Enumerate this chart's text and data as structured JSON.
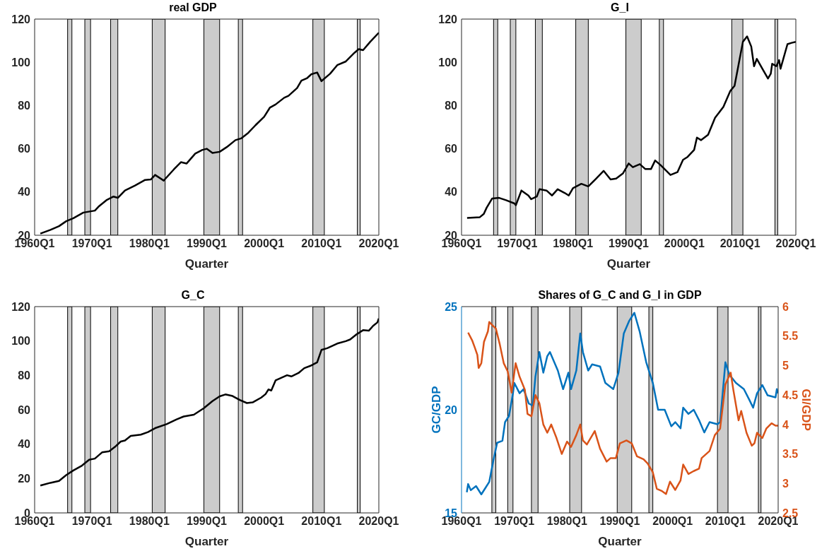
{
  "chart_data": [
    {
      "type": "line",
      "title": "real GDP",
      "xlabel": "Quarter",
      "color": "#000000",
      "xlim": [
        "1960-01",
        "2020-01"
      ],
      "xticks": [
        {
          "value": "1960-01",
          "label": "1960Q1"
        },
        {
          "value": "1970-01",
          "label": "1970Q1"
        },
        {
          "value": "1980-01",
          "label": "1980Q1"
        },
        {
          "value": "1990-01",
          "label": "1990Q1"
        },
        {
          "value": "2000-01",
          "label": "2000Q1"
        },
        {
          "value": "2010-01",
          "label": "2010Q1"
        },
        {
          "value": "2020-01",
          "label": "2020Q1"
        }
      ],
      "ylim": [
        20,
        120
      ],
      "yticks": [
        20,
        40,
        60,
        80,
        100,
        120
      ],
      "bands": [
        {
          "axis": "x",
          "from": "1965-10",
          "to": "1966-07",
          "color": "#cccccc"
        },
        {
          "axis": "x",
          "from": "1968-10",
          "to": "1969-10",
          "color": "#cccccc"
        },
        {
          "axis": "x",
          "from": "1973-04",
          "to": "1974-07",
          "color": "#cccccc"
        },
        {
          "axis": "x",
          "from": "1980-07",
          "to": "1982-10",
          "color": "#cccccc"
        },
        {
          "axis": "x",
          "from": "1989-07",
          "to": "1992-04",
          "color": "#cccccc"
        },
        {
          "axis": "x",
          "from": "1995-07",
          "to": "1996-04",
          "color": "#cccccc"
        },
        {
          "axis": "x",
          "from": "2008-07",
          "to": "2010-07",
          "color": "#cccccc"
        },
        {
          "axis": "x",
          "from": "2016-04",
          "to": "2016-10",
          "color": "#cccccc"
        }
      ],
      "x": [
        "1961-01",
        "1962-10",
        "1964-04",
        "1965-07",
        "1966-10",
        "1968-07",
        "1970-07",
        "1971-04",
        "1972-07",
        "1973-10",
        "1974-07",
        "1975-10",
        "1977-07",
        "1979-04",
        "1980-04",
        "1981-01",
        "1982-07",
        "1984-04",
        "1985-07",
        "1986-07",
        "1988-01",
        "1989-04",
        "1990-01",
        "1991-01",
        "1992-04",
        "1993-07",
        "1995-01",
        "1996-01",
        "1997-04",
        "1998-07",
        "2000-01",
        "2001-01",
        "2002-01",
        "2003-07",
        "2004-04",
        "2005-10",
        "2006-07",
        "2007-07",
        "2008-04",
        "2009-04",
        "2010-01",
        "2011-07",
        "2012-10",
        "2014-04",
        "2015-10",
        "2016-07",
        "2017-04",
        "2018-07",
        "2020-01"
      ],
      "values": [
        20.8,
        22.5,
        24.2,
        26.5,
        27.9,
        30.5,
        31.4,
        33.5,
        36.2,
        37.9,
        37.3,
        40.7,
        43.0,
        45.6,
        45.8,
        47.9,
        45.3,
        50.4,
        53.8,
        53.2,
        57.8,
        59.5,
        60.0,
        58.1,
        58.6,
        60.8,
        64.0,
        64.8,
        67.4,
        70.9,
        74.8,
        79.0,
        80.5,
        83.6,
        84.5,
        88.1,
        91.5,
        92.7,
        94.5,
        95.3,
        91.3,
        94.7,
        98.7,
        100.4,
        104.4,
        106.1,
        105.6,
        109.5,
        113.7
      ]
    },
    {
      "type": "line",
      "title": "G_I",
      "xlabel": "Quarter",
      "color": "#000000",
      "xlim": [
        "1960-01",
        "2020-01"
      ],
      "xticks": [
        {
          "value": "1960-01",
          "label": "1960Q1"
        },
        {
          "value": "1970-01",
          "label": "1970Q1"
        },
        {
          "value": "1980-01",
          "label": "1980Q1"
        },
        {
          "value": "1990-01",
          "label": "1990Q1"
        },
        {
          "value": "2000-01",
          "label": "2000Q1"
        },
        {
          "value": "2010-01",
          "label": "2010Q1"
        },
        {
          "value": "2020-01",
          "label": "2020Q1"
        }
      ],
      "ylim": [
        20,
        120
      ],
      "yticks": [
        20,
        40,
        60,
        80,
        100,
        120
      ],
      "bands": [
        {
          "axis": "x",
          "from": "1965-10",
          "to": "1966-07",
          "color": "#cccccc"
        },
        {
          "axis": "x",
          "from": "1968-10",
          "to": "1969-10",
          "color": "#cccccc"
        },
        {
          "axis": "x",
          "from": "1973-04",
          "to": "1974-07",
          "color": "#cccccc"
        },
        {
          "axis": "x",
          "from": "1980-07",
          "to": "1982-10",
          "color": "#cccccc"
        },
        {
          "axis": "x",
          "from": "1989-07",
          "to": "1992-04",
          "color": "#cccccc"
        },
        {
          "axis": "x",
          "from": "1995-07",
          "to": "1996-04",
          "color": "#cccccc"
        },
        {
          "axis": "x",
          "from": "2008-07",
          "to": "2010-07",
          "color": "#cccccc"
        },
        {
          "axis": "x",
          "from": "2016-04",
          "to": "2016-10",
          "color": "#cccccc"
        }
      ],
      "x": [
        "1961-01",
        "1963-04",
        "1964-01",
        "1964-07",
        "1965-07",
        "1966-10",
        "1968-01",
        "1969-07",
        "1969-10",
        "1970-10",
        "1972-01",
        "1972-07",
        "1973-07",
        "1974-01",
        "1975-04",
        "1976-04",
        "1977-04",
        "1978-07",
        "1979-04",
        "1980-01",
        "1981-07",
        "1982-10",
        "1984-01",
        "1985-07",
        "1986-10",
        "1987-10",
        "1989-01",
        "1990-01",
        "1990-10",
        "1992-01",
        "1993-01",
        "1994-01",
        "1994-10",
        "1995-10",
        "1997-07",
        "1998-10",
        "1999-10",
        "2000-07",
        "2001-10",
        "2002-04",
        "2003-01",
        "2004-04",
        "2005-07",
        "2007-01",
        "2008-04",
        "2009-01",
        "2009-07",
        "2010-07",
        "2011-04",
        "2012-01",
        "2012-07",
        "2013-01",
        "2014-01",
        "2015-01",
        "2015-07",
        "2015-10",
        "2016-07",
        "2017-01",
        "2017-04",
        "2018-07",
        "2019-04",
        "2020-01"
      ],
      "values": [
        28.0,
        28.3,
        29.9,
        32.7,
        37.0,
        37.3,
        36.2,
        34.7,
        33.9,
        40.7,
        38.4,
        36.7,
        37.9,
        41.3,
        40.7,
        38.4,
        41.3,
        39.6,
        38.4,
        41.8,
        43.8,
        42.6,
        45.8,
        49.8,
        45.8,
        46.2,
        48.7,
        53.2,
        51.5,
        52.9,
        50.6,
        50.6,
        54.6,
        52.4,
        47.9,
        49.2,
        54.9,
        56.1,
        59.5,
        65.2,
        64.0,
        66.5,
        74.3,
        79.4,
        86.8,
        89.1,
        95.9,
        109.5,
        112.0,
        107.3,
        98.2,
        101.6,
        97.0,
        92.5,
        94.7,
        99.3,
        98.2,
        101.0,
        97.0,
        108.4,
        109.0,
        109.5
      ]
    },
    {
      "type": "line",
      "title": "G_C",
      "xlabel": "Quarter",
      "color": "#000000",
      "xlim": [
        "1960-01",
        "2020-01"
      ],
      "xticks": [
        {
          "value": "1960-01",
          "label": "1960Q1"
        },
        {
          "value": "1970-01",
          "label": "1970Q1"
        },
        {
          "value": "1980-01",
          "label": "1980Q1"
        },
        {
          "value": "1990-01",
          "label": "1990Q1"
        },
        {
          "value": "2000-01",
          "label": "2000Q1"
        },
        {
          "value": "2010-01",
          "label": "2010Q1"
        },
        {
          "value": "2020-01",
          "label": "2020Q1"
        }
      ],
      "ylim": [
        0,
        120
      ],
      "yticks": [
        0,
        20,
        40,
        60,
        80,
        100,
        120
      ],
      "bands": [
        {
          "axis": "x",
          "from": "1965-10",
          "to": "1966-07",
          "color": "#cccccc"
        },
        {
          "axis": "x",
          "from": "1968-10",
          "to": "1969-10",
          "color": "#cccccc"
        },
        {
          "axis": "x",
          "from": "1973-04",
          "to": "1974-07",
          "color": "#cccccc"
        },
        {
          "axis": "x",
          "from": "1980-07",
          "to": "1982-10",
          "color": "#cccccc"
        },
        {
          "axis": "x",
          "from": "1989-07",
          "to": "1992-04",
          "color": "#cccccc"
        },
        {
          "axis": "x",
          "from": "1995-07",
          "to": "1996-04",
          "color": "#cccccc"
        },
        {
          "axis": "x",
          "from": "2008-07",
          "to": "2010-07",
          "color": "#cccccc"
        },
        {
          "axis": "x",
          "from": "2016-04",
          "to": "2016-10",
          "color": "#cccccc"
        }
      ],
      "x": [
        "1961-01",
        "1962-10",
        "1964-04",
        "1965-07",
        "1966-10",
        "1968-04",
        "1969-07",
        "1970-07",
        "1971-10",
        "1973-01",
        "1974-01",
        "1975-01",
        "1975-10",
        "1976-10",
        "1978-07",
        "1979-10",
        "1981-01",
        "1983-01",
        "1984-10",
        "1986-01",
        "1987-10",
        "1989-07",
        "1991-01",
        "1992-04",
        "1993-04",
        "1994-07",
        "1995-10",
        "1997-01",
        "1998-01",
        "1999-07",
        "2000-04",
        "2000-10",
        "2001-04",
        "2002-01",
        "2004-01",
        "2004-10",
        "2006-01",
        "2007-01",
        "2008-04",
        "2009-04",
        "2010-01",
        "2011-01",
        "2012-10",
        "2014-04",
        "2015-01",
        "2016-01",
        "2017-04",
        "2018-04",
        "2019-01",
        "2019-10",
        "2020-01"
      ],
      "values": [
        15.9,
        17.5,
        18.6,
        22.0,
        24.7,
        27.5,
        30.9,
        31.6,
        35.2,
        35.9,
        38.4,
        41.5,
        42.1,
        44.8,
        45.5,
        47.0,
        49.3,
        51.6,
        54.4,
        56.1,
        57.1,
        60.9,
        65.0,
        67.8,
        68.9,
        68.0,
        65.7,
        63.9,
        64.3,
        67.1,
        69.1,
        71.8,
        71.2,
        77.1,
        80.1,
        79.4,
        81.4,
        84.2,
        85.8,
        87.6,
        94.8,
        95.8,
        98.5,
        99.9,
        100.9,
        103.6,
        106.3,
        106.0,
        108.8,
        110.8,
        113.1
      ]
    },
    {
      "type": "line",
      "title": "Shares of G_C and G_I in GDP",
      "xlabel": "Quarter",
      "ylabel": "GC/GDP",
      "y2label": "GI/GDP",
      "xlim": [
        "1960-01",
        "2020-01"
      ],
      "xticks": [
        {
          "value": "1960-01",
          "label": "1960Q1"
        },
        {
          "value": "1970-01",
          "label": "1970Q1"
        },
        {
          "value": "1980-01",
          "label": "1980Q1"
        },
        {
          "value": "1990-01",
          "label": "1990Q1"
        },
        {
          "value": "2000-01",
          "label": "2000Q1"
        },
        {
          "value": "2010-01",
          "label": "2010Q1"
        },
        {
          "value": "2020-01",
          "label": "2020Q1"
        }
      ],
      "ylim": [
        15,
        25
      ],
      "yticks": [
        15,
        20,
        25
      ],
      "y2lim": [
        2.5,
        6
      ],
      "y2ticks": [
        2.5,
        3,
        3.5,
        4,
        4.5,
        5,
        5.5,
        6
      ],
      "bands": [
        {
          "axis": "x",
          "from": "1965-10",
          "to": "1966-07",
          "color": "#cccccc"
        },
        {
          "axis": "x",
          "from": "1968-10",
          "to": "1969-10",
          "color": "#cccccc"
        },
        {
          "axis": "x",
          "from": "1973-04",
          "to": "1974-07",
          "color": "#cccccc"
        },
        {
          "axis": "x",
          "from": "1980-07",
          "to": "1982-10",
          "color": "#cccccc"
        },
        {
          "axis": "x",
          "from": "1989-07",
          "to": "1992-04",
          "color": "#cccccc"
        },
        {
          "axis": "x",
          "from": "1995-07",
          "to": "1996-04",
          "color": "#cccccc"
        },
        {
          "axis": "x",
          "from": "2008-07",
          "to": "2010-07",
          "color": "#cccccc"
        },
        {
          "axis": "x",
          "from": "2016-04",
          "to": "2016-10",
          "color": "#cccccc"
        }
      ],
      "series": [
        {
          "color": "#0072bd",
          "x": [
            "1961-01",
            "1961-04",
            "1961-10",
            "1962-10",
            "1963-10",
            "1964-07",
            "1965-04",
            "1966-01",
            "1966-10",
            "1967-10",
            "1968-04",
            "1969-01",
            "1969-10",
            "1970-01",
            "1971-01",
            "1971-10",
            "1972-10",
            "1973-07",
            "1974-01",
            "1974-10",
            "1975-07",
            "1976-04",
            "1976-10",
            "1978-04",
            "1979-04",
            "1980-04",
            "1980-10",
            "1981-10",
            "1982-07",
            "1983-01",
            "1984-01",
            "1984-10",
            "1986-04",
            "1987-04",
            "1988-10",
            "1989-10",
            "1990-10",
            "1991-10",
            "1992-10",
            "1993-10",
            "1995-01",
            "1996-04",
            "1997-04",
            "1998-07",
            "1999-10",
            "2000-07",
            "2001-07",
            "2002-01",
            "2003-01",
            "2004-01",
            "2005-01",
            "2006-01",
            "2007-01",
            "2008-07",
            "2009-01",
            "2010-01",
            "2010-10",
            "2012-01",
            "2013-07",
            "2014-07",
            "2015-04",
            "2016-01",
            "2017-01",
            "2018-01",
            "2019-07",
            "2019-10",
            "2020-01"
          ],
          "values": [
            16.0,
            16.4,
            16.1,
            16.3,
            15.9,
            16.2,
            16.5,
            17.5,
            18.4,
            18.5,
            19.4,
            19.7,
            20.8,
            21.3,
            20.8,
            21.0,
            20.3,
            20.2,
            21.6,
            22.8,
            21.8,
            22.6,
            22.8,
            21.9,
            21.0,
            21.8,
            21.0,
            21.9,
            23.7,
            22.8,
            21.9,
            22.2,
            22.1,
            21.3,
            21.0,
            21.8,
            23.7,
            24.3,
            24.7,
            23.8,
            22.3,
            21.3,
            20.0,
            20.0,
            19.2,
            19.4,
            19.1,
            20.1,
            19.8,
            20.0,
            19.5,
            18.9,
            19.4,
            19.3,
            19.4,
            22.3,
            21.7,
            21.3,
            21.0,
            20.5,
            20.1,
            20.8,
            21.2,
            20.7,
            20.6,
            21.0,
            20.8
          ]
        },
        {
          "color": "#d95319",
          "axis": "y2",
          "x": [
            "1961-04",
            "1962-01",
            "1962-07",
            "1963-01",
            "1963-04",
            "1963-10",
            "1964-04",
            "1965-01",
            "1965-04",
            "1966-01",
            "1966-07",
            "1967-04",
            "1968-01",
            "1968-10",
            "1969-07",
            "1970-04",
            "1971-01",
            "1972-01",
            "1972-07",
            "1973-04",
            "1974-01",
            "1974-10",
            "1975-07",
            "1976-04",
            "1977-01",
            "1978-01",
            "1979-01",
            "1980-01",
            "1980-10",
            "1981-10",
            "1982-07",
            "1983-01",
            "1983-10",
            "1985-04",
            "1986-04",
            "1987-07",
            "1988-04",
            "1989-04",
            "1990-01",
            "1991-04",
            "1992-04",
            "1993-04",
            "1994-07",
            "1995-04",
            "1996-04",
            "1997-01",
            "1998-01",
            "1998-10",
            "1999-07",
            "2000-07",
            "2001-07",
            "2002-01",
            "2003-01",
            "2004-01",
            "2005-01",
            "2005-07",
            "2007-01",
            "2008-01",
            "2009-01",
            "2010-01",
            "2011-01",
            "2011-07",
            "2012-07",
            "2013-01",
            "2014-01",
            "2015-01",
            "2015-07",
            "2016-01",
            "2017-01",
            "2017-10",
            "2018-10",
            "2019-07",
            "2020-01"
          ],
          "values": [
            5.56,
            5.43,
            5.31,
            5.18,
            4.96,
            5.04,
            5.4,
            5.58,
            5.74,
            5.67,
            5.63,
            5.36,
            5.04,
            4.9,
            4.54,
            5.04,
            4.81,
            4.59,
            4.18,
            4.14,
            4.5,
            4.36,
            4.0,
            3.86,
            4.0,
            3.77,
            3.5,
            3.71,
            3.62,
            3.82,
            4.0,
            3.73,
            3.66,
            3.89,
            3.59,
            3.37,
            3.43,
            3.43,
            3.68,
            3.73,
            3.68,
            3.46,
            3.41,
            3.34,
            3.19,
            2.91,
            2.87,
            2.82,
            3.03,
            2.89,
            3.05,
            3.32,
            3.16,
            3.21,
            3.25,
            3.43,
            3.55,
            3.82,
            3.93,
            4.68,
            4.88,
            4.59,
            4.07,
            4.23,
            3.86,
            3.64,
            3.68,
            3.86,
            3.77,
            3.93,
            4.02,
            3.98,
            3.98
          ]
        }
      ]
    }
  ]
}
